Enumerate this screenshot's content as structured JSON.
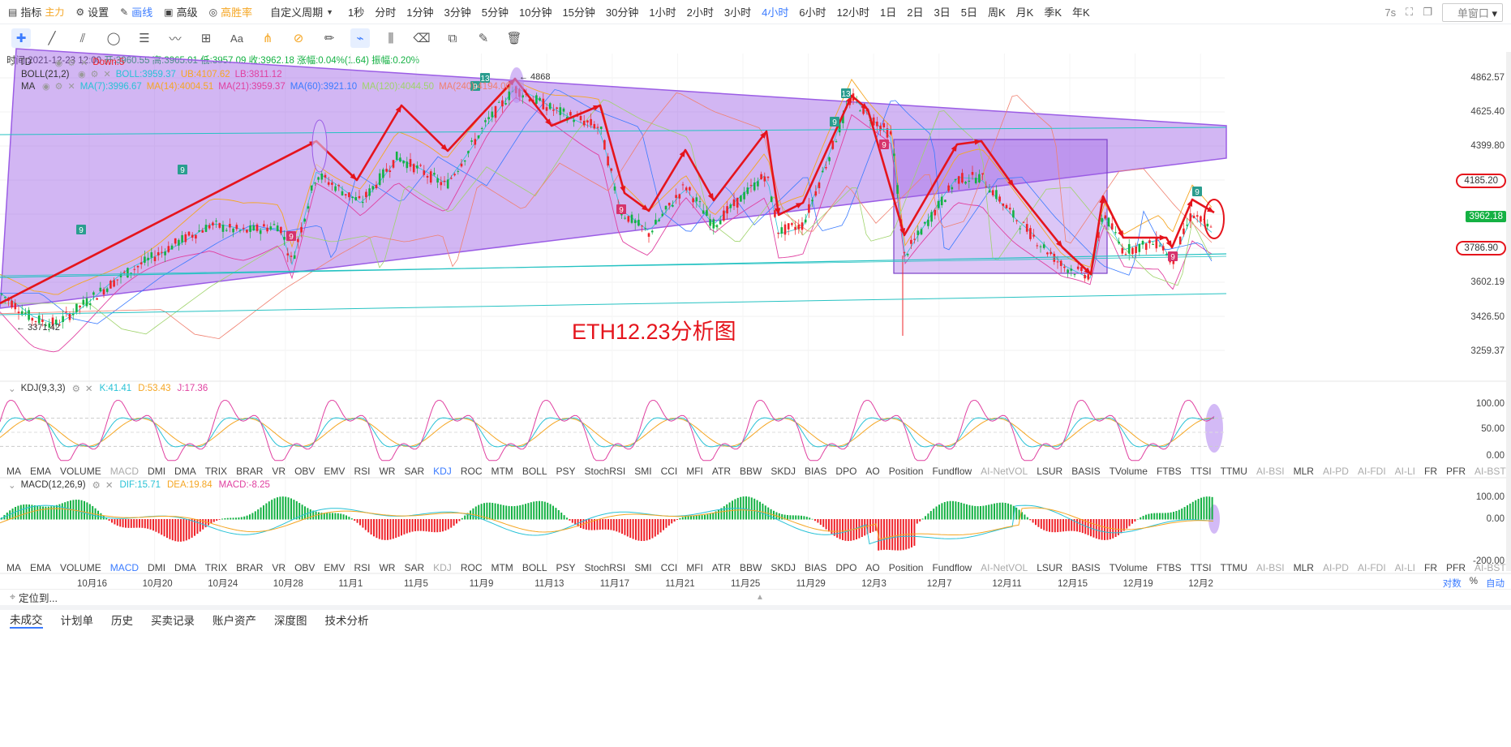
{
  "topbar": {
    "indicator_label": "指标",
    "indicator_tag": "主力",
    "settings_label": "设置",
    "draw_label": "画线",
    "advanced_label": "高级",
    "winrate_label": "高胜率",
    "custom_period_label": "自定义周期",
    "periods": [
      "1秒",
      "分时",
      "1分钟",
      "3分钟",
      "5分钟",
      "10分钟",
      "15分钟",
      "30分钟",
      "1小时",
      "2小时",
      "3小时",
      "4小时",
      "6小时",
      "12小时",
      "1日",
      "2日",
      "3日",
      "5日",
      "周K",
      "月K",
      "季K",
      "年K"
    ],
    "active_period": "4小时",
    "countdown": "7s",
    "window_mode": "单窗口"
  },
  "info": {
    "time": "时间:2021-12-23 12:00",
    "open": "开:3960.55",
    "high": "高:3965.01",
    "low": "低:3957.09",
    "close": "收:3962.18",
    "change": "涨幅:0.04%(1.64)",
    "amplitude": "振幅:0.20%"
  },
  "legends": {
    "td_name": "TD",
    "td_value": "Down:5",
    "boll_name": "BOLL(21,2)",
    "boll_mid": "BOLL:3959.37",
    "boll_ub": "UB:4107.62",
    "boll_lb": "LB:3811.12",
    "ma_name": "MA",
    "ma7": "MA(7):3996.67",
    "ma14": "MA(14):4004.51",
    "ma21": "MA(21):3959.37",
    "ma60": "MA(60):3921.10",
    "ma120": "MA(120):4044.50",
    "ma240": "MA(240):4194.00"
  },
  "colors": {
    "up": "#14b143",
    "down": "#ef232a",
    "ma7": "#28c2d6",
    "ma14": "#f5a623",
    "ma21": "#e040a0",
    "ma60": "#3a7bff",
    "ma120": "#9fd36b",
    "ma240": "#f08070",
    "purple_zone": "#9b5de5",
    "trend_red": "#e5141c",
    "trend_cyan": "#25c2c2",
    "accent": "#3a7bff"
  },
  "price_axis": [
    "4862.57",
    "4625.40",
    "4399.80",
    "4185.20",
    "3962.18",
    "3786.90",
    "3602.19",
    "3426.50",
    "3259.37"
  ],
  "price_marks": {
    "current": "3962.18",
    "circle_high": "4185.20",
    "circle_low": "3786.90"
  },
  "chart_labels": {
    "peak": "4868",
    "low": "3371.42",
    "td_marks": [
      "9",
      "9",
      "9",
      "9",
      "13",
      "9",
      "9",
      "13",
      "9",
      "9",
      "9"
    ]
  },
  "annotation": "ETH12.23分析图",
  "kdj": {
    "name": "KDJ(9,3,3)",
    "k": "K:41.41",
    "d": "D:53.43",
    "j": "J:17.36",
    "axis": [
      "100.00",
      "50.00",
      "0.00"
    ]
  },
  "macd": {
    "name": "MACD(12,26,9)",
    "dif": "DIF:15.71",
    "dea": "DEA:19.84",
    "macd": "MACD:-8.25",
    "axis": [
      "100.00",
      "0.00",
      "-200.00"
    ]
  },
  "indicator_list": [
    "MA",
    "EMA",
    "VOLUME",
    "MACD",
    "DMI",
    "DMA",
    "TRIX",
    "BRAR",
    "VR",
    "OBV",
    "EMV",
    "RSI",
    "WR",
    "SAR",
    "KDJ",
    "ROC",
    "MTM",
    "BOLL",
    "PSY",
    "StochRSI",
    "SMI",
    "CCI",
    "MFI",
    "ATR",
    "BBW",
    "SKDJ",
    "BIAS",
    "DPO",
    "AO",
    "Position",
    "Fundflow",
    "AI-NetVOL",
    "LSUR",
    "BASIS",
    "TVolume",
    "FTBS",
    "TTSI",
    "TTMU",
    "AI-BSI",
    "MLR",
    "AI-PD",
    "AI-FDI",
    "AI-LI",
    "FR",
    "PFR",
    "AI-BST"
  ],
  "dates": [
    "10月16",
    "10月20",
    "10月24",
    "10月28",
    "11月1",
    "11月5",
    "11月9",
    "11月13",
    "11月17",
    "11月21",
    "11月25",
    "11月29",
    "12月3",
    "12月7",
    "12月11",
    "12月15",
    "12月19",
    "12月2"
  ],
  "axis_options": {
    "log": "对数",
    "pct": "%",
    "auto": "自动"
  },
  "locate_label": "定位到...",
  "bottom_tabs": [
    "未成交",
    "计划单",
    "历史",
    "买卖记录",
    "账户资产",
    "深度图",
    "技术分析"
  ]
}
